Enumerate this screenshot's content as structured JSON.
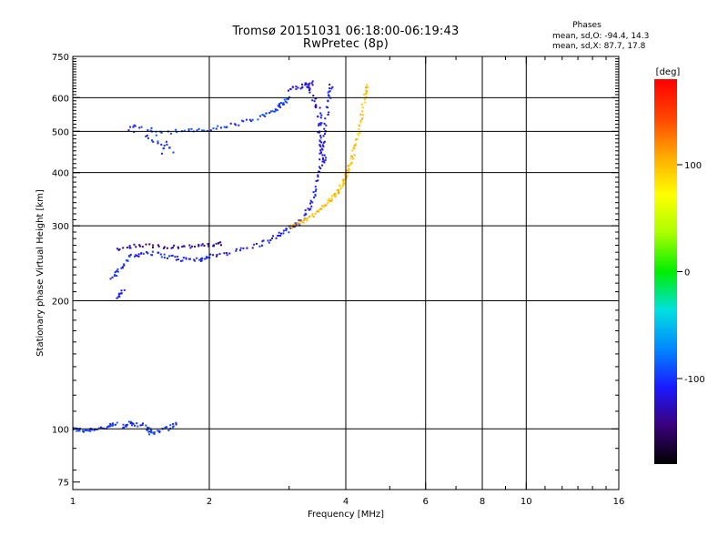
{
  "header": {
    "title": "Tromsø 20151031 06:18:00-06:19:43",
    "subtitle": "RwPretec (8p)"
  },
  "stats": {
    "heading": "Phases",
    "line_o": "mean, sd,O: -94.4, 14.3",
    "line_x": "mean, sd,X: 87.7, 17.8"
  },
  "colorbar": {
    "unit_label": "[deg]",
    "tick_values": [
      100,
      0,
      -100
    ],
    "tick_labels": [
      "100",
      "0",
      "-100"
    ],
    "range": [
      -180,
      180
    ],
    "stops": [
      "#000000",
      "#3a007a",
      "#1a1aff",
      "#0088ff",
      "#00e0e0",
      "#00ee00",
      "#aaff00",
      "#ffff00",
      "#ffaa00",
      "#ff4400",
      "#ff0000"
    ]
  },
  "chart_data": {
    "type": "scatter",
    "title": "Tromsø 20151031 06:18:00-06:19:43",
    "subtitle": "RwPretec (8p)",
    "xlabel": "Frequency [MHz]",
    "ylabel": "Stationary phase Virtual Height [km]",
    "x_scale": "log",
    "y_scale": "log",
    "xlim": [
      1,
      16
    ],
    "ylim": [
      72,
      750
    ],
    "x_ticks": [
      1,
      2,
      4,
      6,
      8,
      10,
      16
    ],
    "x_tick_labels": [
      "1",
      "2",
      "4",
      "6",
      "8",
      "10",
      "16"
    ],
    "x_grid_values": [
      2,
      4,
      6,
      8,
      10
    ],
    "y_ticks": [
      75,
      100,
      200,
      300,
      400,
      500,
      600,
      750
    ],
    "y_tick_labels": [
      "75",
      "100",
      "200",
      "300",
      "400",
      "500",
      "600",
      "750"
    ],
    "y_grid_values": [
      100,
      200,
      300,
      400,
      500,
      600
    ],
    "grid": true,
    "color_scale": "phase [deg]",
    "traces": [
      {
        "points": [
          [
            1.0,
            100
          ],
          [
            1.05,
            99
          ],
          [
            1.12,
            100
          ],
          [
            1.2,
            101
          ],
          [
            1.25,
            103
          ]
        ],
        "phase": -100,
        "spread": [
          0.01,
          0.01
        ]
      },
      {
        "points": [
          [
            1.22,
            225
          ],
          [
            1.28,
            240
          ],
          [
            1.35,
            255
          ],
          [
            1.45,
            260
          ],
          [
            1.6,
            255
          ],
          [
            1.75,
            250
          ],
          [
            1.9,
            250
          ],
          [
            2.0,
            252
          ]
        ],
        "phase": -105,
        "spread": [
          0.012,
          0.012
        ]
      },
      {
        "points": [
          [
            1.25,
            265
          ],
          [
            1.4,
            270
          ],
          [
            1.6,
            268
          ],
          [
            1.8,
            268
          ],
          [
            2.0,
            270
          ],
          [
            2.15,
            272
          ]
        ],
        "phase": -135,
        "spread": [
          0.01,
          0.01
        ]
      },
      {
        "points": [
          [
            2.0,
            255
          ],
          [
            2.3,
            262
          ],
          [
            2.6,
            272
          ],
          [
            2.85,
            285
          ],
          [
            3.0,
            295
          ],
          [
            3.15,
            305
          ],
          [
            3.3,
            325
          ],
          [
            3.4,
            350
          ],
          [
            3.5,
            400
          ],
          [
            3.55,
            450
          ],
          [
            3.62,
            520
          ],
          [
            3.68,
            600
          ],
          [
            3.72,
            650
          ]
        ],
        "phase": -110,
        "spread": [
          0.01,
          0.012
        ]
      },
      {
        "points": [
          [
            1.25,
            203
          ],
          [
            1.3,
            212
          ]
        ],
        "phase": -112,
        "spread": [
          0.008,
          0.01
        ]
      },
      {
        "points": [
          [
            1.35,
            515
          ],
          [
            1.45,
            495
          ],
          [
            1.55,
            465
          ],
          [
            1.65,
            450
          ]
        ],
        "phase": -100,
        "spread": [
          0.03,
          0.03
        ]
      },
      {
        "points": [
          [
            1.5,
            500
          ],
          [
            1.8,
            500
          ],
          [
            2.0,
            505
          ],
          [
            2.3,
            520
          ],
          [
            2.6,
            540
          ],
          [
            2.8,
            560
          ],
          [
            2.9,
            580
          ],
          [
            3.0,
            600
          ]
        ],
        "phase": -95,
        "spread": [
          0.01,
          0.012
        ]
      },
      {
        "points": [
          [
            3.0,
            630
          ],
          [
            3.2,
            640
          ],
          [
            3.4,
            650
          ]
        ],
        "phase": -120,
        "spread": [
          0.01,
          0.012
        ]
      },
      {
        "points": [
          [
            3.3,
            650
          ],
          [
            3.4,
            600
          ],
          [
            3.5,
            550
          ],
          [
            3.5,
            500
          ],
          [
            3.55,
            450
          ],
          [
            3.6,
            420
          ]
        ],
        "phase": -115,
        "spread": [
          0.012,
          0.015
        ]
      },
      {
        "points": [
          [
            3.0,
            298
          ],
          [
            3.2,
            305
          ],
          [
            3.4,
            318
          ],
          [
            3.6,
            335
          ],
          [
            3.75,
            350
          ],
          [
            3.85,
            362
          ],
          [
            3.95,
            378
          ],
          [
            4.0,
            395
          ],
          [
            4.1,
            420
          ],
          [
            4.2,
            460
          ],
          [
            4.3,
            520
          ],
          [
            4.4,
            600
          ],
          [
            4.45,
            650
          ]
        ],
        "phase": 100,
        "spread": [
          0.008,
          0.01
        ]
      },
      {
        "points": [
          [
            1.3,
            100
          ],
          [
            1.35,
            104
          ],
          [
            1.45,
            100
          ],
          [
            1.5,
            98
          ],
          [
            1.6,
            100
          ],
          [
            1.7,
            104
          ]
        ],
        "phase": -100,
        "spread": [
          0.015,
          0.015
        ]
      }
    ]
  }
}
